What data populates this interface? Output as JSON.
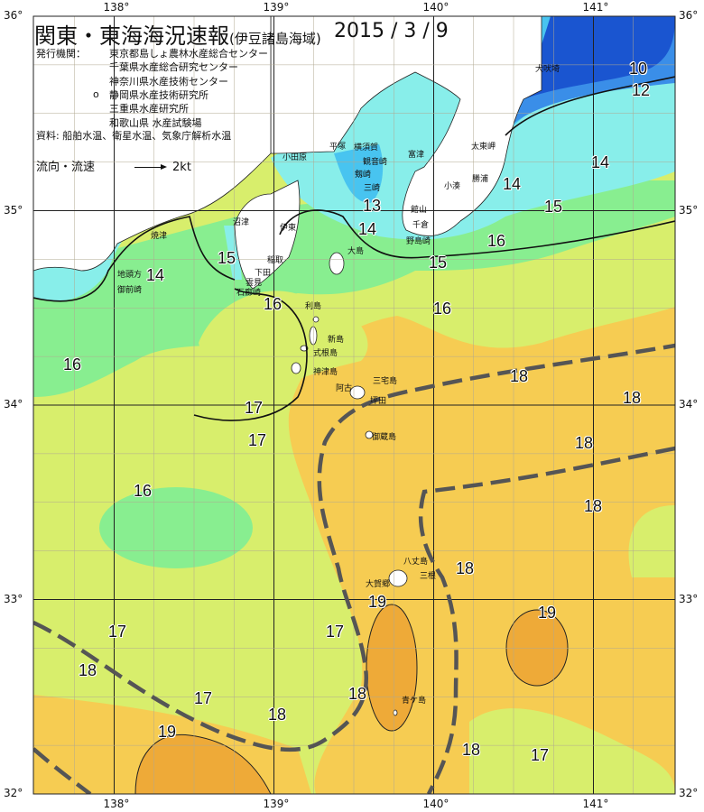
{
  "title": "関東・東海海況速報",
  "subtitle": "(伊豆諸島海域)",
  "date": "2015 / 3 / 9",
  "issuers_label": "発行機関：",
  "issuers": [
    "東京都島しょ農林水産総合センター",
    "千葉県水産総合研究センター",
    "神奈川県水産技術センター",
    "静岡県水産技術研究所",
    "三重県水産研究所",
    "和歌山県 水産試験場"
  ],
  "issuer_marker": "o",
  "sources": "資料: 船舶水温、衛星水温、気象庁解析水温",
  "current_legend": {
    "label": "流向・流速",
    "scale": "2kt"
  },
  "axes": {
    "longitudes": [
      "138°",
      "139°",
      "140°",
      "141°"
    ],
    "latitudes": [
      "36°",
      "35°",
      "34°",
      "33°",
      "32°"
    ]
  },
  "places": [
    "犬吠埼",
    "太東岬",
    "勝浦",
    "小湊",
    "館山",
    "千倉",
    "野島崎",
    "富津",
    "観音崎",
    "剱崎",
    "三崎",
    "横須賀",
    "平塚",
    "小田原",
    "伊東",
    "稲取",
    "下田",
    "石廊崎",
    "雲見",
    "沼津",
    "焼津",
    "地頭方",
    "御前崎",
    "大島",
    "利島",
    "新島",
    "式根島",
    "神津島",
    "三宅島",
    "阿古",
    "坪田",
    "御蔵島",
    "八丈島",
    "三根",
    "大賀郷",
    "青ケ島"
  ],
  "isotherm_labels": [
    "10",
    "12",
    "13",
    "14",
    "14",
    "14",
    "14",
    "15",
    "15",
    "15",
    "16",
    "16",
    "16",
    "16",
    "16",
    "17",
    "17",
    "17",
    "17",
    "17",
    "18",
    "18",
    "18",
    "18",
    "18",
    "18",
    "18",
    "18",
    "19",
    "19",
    "19",
    "18",
    "17"
  ],
  "temperature_colors": {
    "10": "#1a55d0",
    "12": "#3a8ee8",
    "13": "#48c4f0",
    "14": "#88eeea",
    "15": "#88ee90",
    "16": "#c8f078",
    "17": "#e2e868",
    "18": "#f6cc52",
    "19": "#eeaa38"
  },
  "kuroshio_line_color": "#555555"
}
